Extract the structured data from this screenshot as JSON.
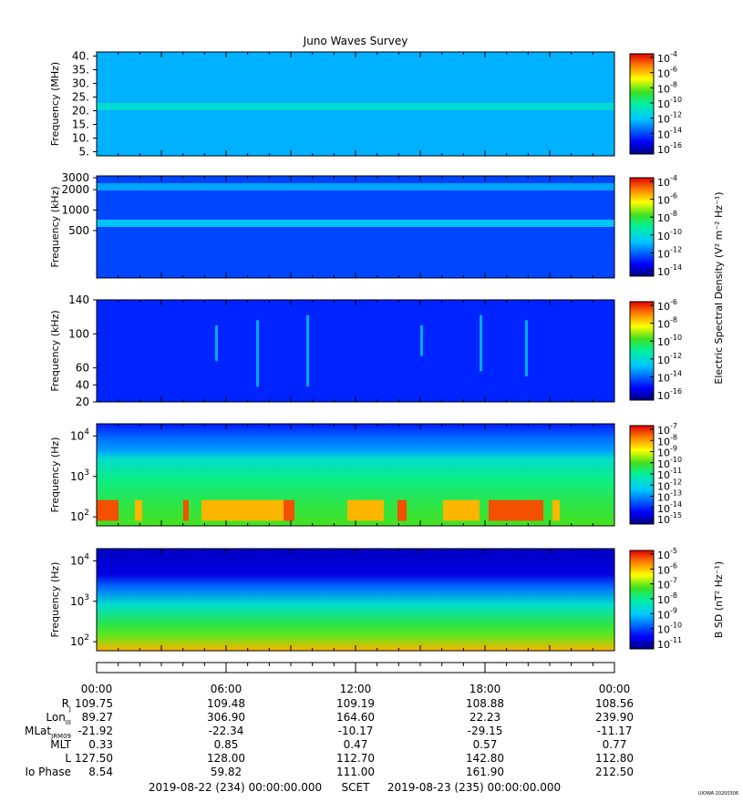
{
  "title": "Juno Waves Survey",
  "stamp": "UIOWA 20200306",
  "chart_data": [
    {
      "type": "heatmap",
      "ylabel": "Frequency (MHz)",
      "yticks": [
        "40.",
        "35.",
        "30.",
        "25.",
        "20.",
        "15.",
        "10.",
        "5."
      ],
      "yvalues": [
        40,
        35,
        30,
        25,
        20,
        15,
        10,
        5
      ],
      "ylim": [
        3.5,
        41.5
      ],
      "colorbar_ticks": [
        "-4",
        "-6",
        "-8",
        "-10",
        "-12",
        "-14",
        "-16"
      ],
      "colorbar_range": [
        -17,
        -4
      ],
      "bands": [
        {
          "freq": 21.5,
          "level": -11.5
        }
      ],
      "background_level": -12.8
    },
    {
      "type": "heatmap",
      "ylabel": "Frequency (kHz)",
      "yticks": [
        "3000",
        "2000",
        "1000",
        "500"
      ],
      "yvalues": [
        3000,
        2000,
        1000,
        500
      ],
      "colorbar_ticks": [
        "-4",
        "-6",
        "-8",
        "-10",
        "-12",
        "-14"
      ],
      "colorbar_range": [
        -15,
        -4
      ],
      "bands": [
        {
          "freq": 2200,
          "level": -11.6
        },
        {
          "freq": 640,
          "level": -11.2
        }
      ],
      "background_level": -12.8
    },
    {
      "type": "heatmap",
      "ylabel": "Frequency (kHz)",
      "yticks": [
        "140",
        "100",
        "60",
        "40",
        "20"
      ],
      "yvalues": [
        140,
        100,
        60,
        40,
        20
      ],
      "colorbar_ticks": [
        "-6",
        "-8",
        "-10",
        "-12",
        "-14",
        "-16"
      ],
      "colorbar_range": [
        -16.5,
        -6
      ],
      "background_level": -14.8
    },
    {
      "type": "heatmap",
      "ylabel": "Frequency (Hz)",
      "yticks": [
        {
          "base": "10",
          "exp": "4"
        },
        {
          "base": "10",
          "exp": "3"
        },
        {
          "base": "10",
          "exp": "2"
        }
      ],
      "yvalues": [
        10000,
        1000,
        100
      ],
      "colorbar_ticks": [
        "-7",
        "-8",
        "-9",
        "-10",
        "-11",
        "-12",
        "-13",
        "-14",
        "-15"
      ],
      "colorbar_range": [
        -15,
        -7
      ],
      "background_level": -11
    },
    {
      "type": "heatmap",
      "ylabel": "Frequency (Hz)",
      "yticks": [
        {
          "base": "10",
          "exp": "4"
        },
        {
          "base": "10",
          "exp": "3"
        },
        {
          "base": "10",
          "exp": "2"
        }
      ],
      "yvalues": [
        10000,
        1000,
        100
      ],
      "colorbar_ticks": [
        "-5",
        "-6",
        "-7",
        "-8",
        "-9",
        "-10",
        "-11"
      ],
      "colorbar_range": [
        -11,
        -4.5
      ],
      "background_level": -8
    }
  ],
  "colorbar_labels": {
    "electric": "Electric Spectral Density (V² m⁻² Hz⁻¹)",
    "magnetic": "B SD (nT² Hz⁻¹)"
  },
  "colorbar_base": "10",
  "time_axis": [
    "00:00",
    "06:00",
    "12:00",
    "18:00",
    "00:00"
  ],
  "ephemeris": [
    {
      "label": "R",
      "sub": "J",
      "values": [
        "109.75",
        "109.48",
        "109.19",
        "108.88",
        "108.56"
      ]
    },
    {
      "label": "Lon",
      "sub": "III",
      "values": [
        "89.27",
        "306.90",
        "164.60",
        "22.23",
        "239.90"
      ]
    },
    {
      "label": "MLat",
      "sub": "JRM09",
      "values": [
        "-21.92",
        "-22.34",
        "-10.17",
        "-29.15",
        "-11.17"
      ]
    },
    {
      "label": "MLT",
      "sub": "",
      "values": [
        "0.33",
        "0.85",
        "0.47",
        "0.57",
        "0.77"
      ]
    },
    {
      "label": "L",
      "sub": "",
      "values": [
        "127.50",
        "128.00",
        "112.70",
        "142.80",
        "112.80"
      ]
    },
    {
      "label": "Io Phase",
      "sub": "",
      "values": [
        "8.54",
        "59.82",
        "111.00",
        "161.90",
        "212.50"
      ]
    }
  ],
  "footer": {
    "start": "2019-08-22 (234) 00:00:00.000",
    "scet": "SCET",
    "end": "2019-08-23 (235) 00:00:00.000"
  }
}
